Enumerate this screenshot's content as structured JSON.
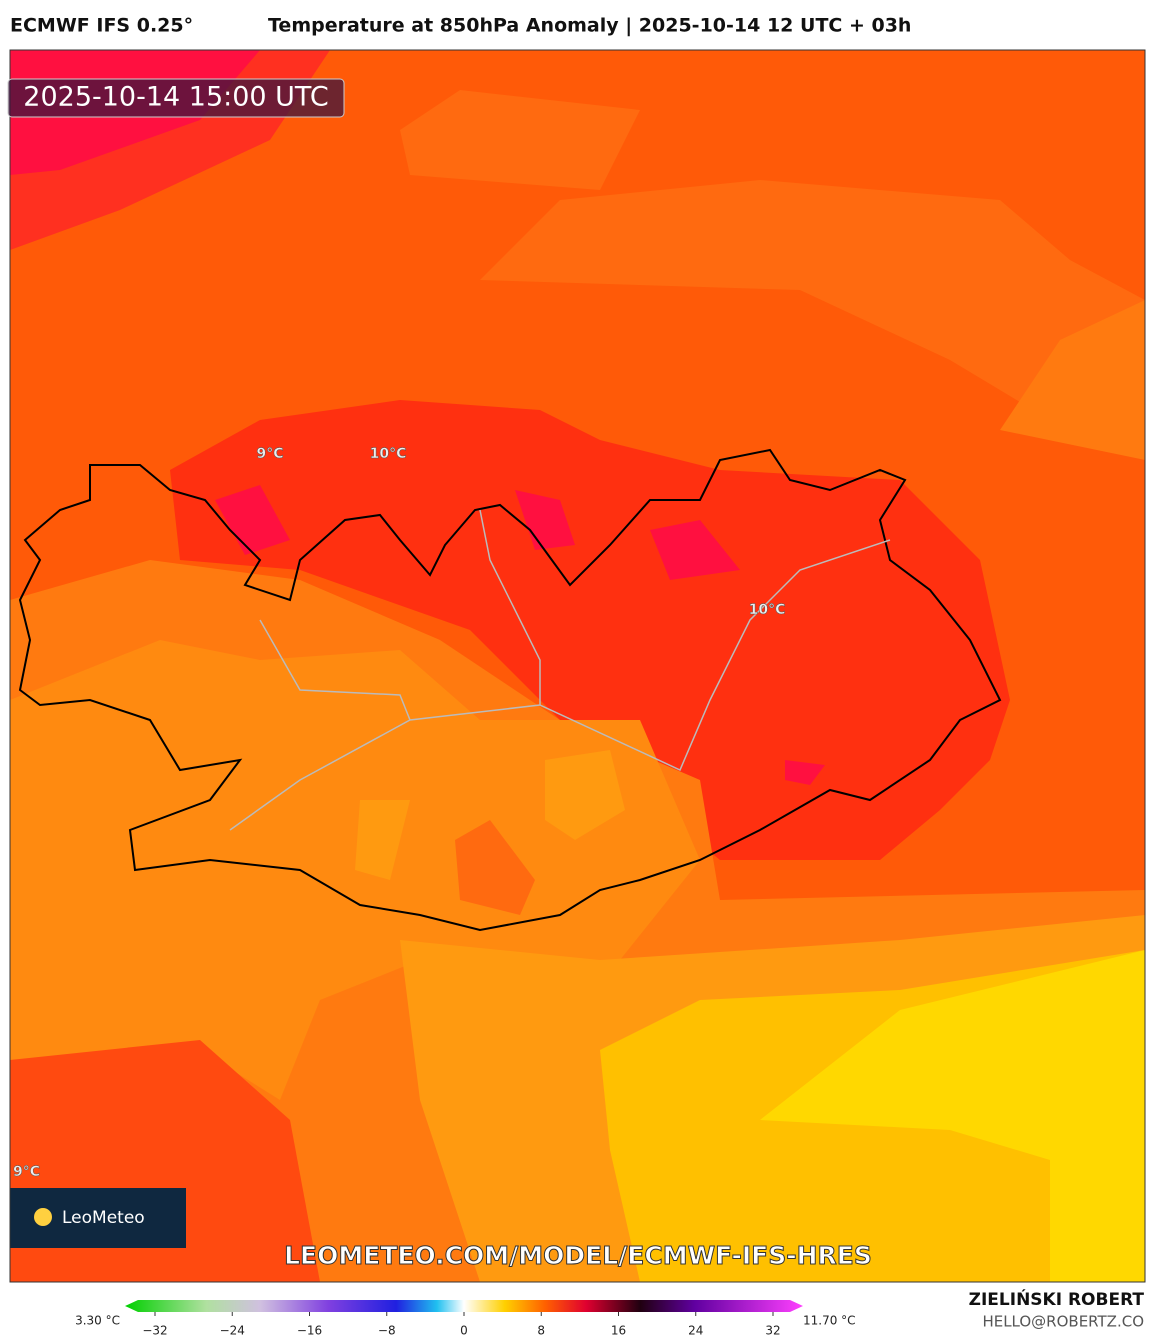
{
  "header": {
    "model": "ECMWF IFS 0.25°",
    "title": "Temperature at 850hPa Anomaly | 2025-10-14 12 UTC + 03h"
  },
  "map": {
    "timestamp": "2025-10-14 15:00 UTC",
    "contour_labels": [
      "9°C",
      "10°C",
      "10°C",
      "9°C"
    ],
    "logo": "LeoMeteo",
    "url": "LEOMETEO.COM/MODEL/ECMWF-IFS-HRES"
  },
  "colorbar": {
    "min_label": "3.30 °C",
    "max_label": "11.70 °C",
    "lim": [
      -32,
      32
    ],
    "ticks": [
      {
        "value": -32,
        "label": "−32"
      },
      {
        "value": -24,
        "label": "−24"
      },
      {
        "value": -16,
        "label": "−16"
      },
      {
        "value": -8,
        "label": "−8"
      },
      0,
      8,
      16,
      24,
      32
    ]
  },
  "credit": {
    "author": "ZIELIŃSKI ROBERT",
    "email": "HELLO@ROBERTZ.CO"
  }
}
